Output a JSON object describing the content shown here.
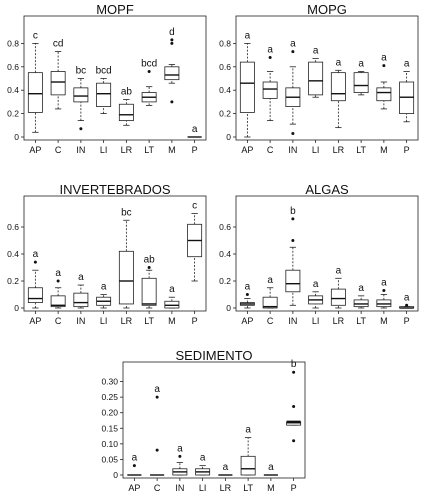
{
  "chart_data": [
    {
      "type": "boxplot",
      "title": "MOPF",
      "ylim": [
        0,
        1.0
      ],
      "yticks": [
        0,
        0.2,
        0.4,
        0.6,
        0.8
      ],
      "categories": [
        "AP",
        "C",
        "IN",
        "LI",
        "LR",
        "LT",
        "M",
        "P"
      ],
      "boxes": [
        {
          "min": 0.04,
          "q1": 0.21,
          "median": 0.37,
          "q3": 0.55,
          "max": 0.8,
          "outliers": [],
          "letter": "c"
        },
        {
          "min": 0.24,
          "q1": 0.36,
          "median": 0.47,
          "q3": 0.56,
          "max": 0.73,
          "outliers": [],
          "letter": "cd"
        },
        {
          "min": 0.14,
          "q1": 0.3,
          "median": 0.35,
          "q3": 0.42,
          "max": 0.5,
          "outliers": [
            0.07
          ],
          "letter": "bc"
        },
        {
          "min": 0.2,
          "q1": 0.26,
          "median": 0.37,
          "q3": 0.46,
          "max": 0.5,
          "outliers": [],
          "letter": "bcd"
        },
        {
          "min": 0.1,
          "q1": 0.14,
          "median": 0.19,
          "q3": 0.28,
          "max": 0.32,
          "outliers": [],
          "letter": "ab"
        },
        {
          "min": 0.27,
          "q1": 0.3,
          "median": 0.34,
          "q3": 0.38,
          "max": 0.43,
          "outliers": [
            0.56
          ],
          "letter": "bcd"
        },
        {
          "min": 0.46,
          "q1": 0.49,
          "median": 0.53,
          "q3": 0.6,
          "max": 0.62,
          "outliers": [
            0.3,
            0.8,
            0.83
          ],
          "letter": "d"
        },
        {
          "min": 0.0,
          "q1": 0.0,
          "median": 0.0,
          "q3": 0.0,
          "max": 0.0,
          "outliers": [],
          "letter": "a"
        }
      ]
    },
    {
      "type": "boxplot",
      "title": "MOPG",
      "ylim": [
        0,
        1.0
      ],
      "yticks": [
        0,
        0.2,
        0.4,
        0.6,
        0.8
      ],
      "categories": [
        "AP",
        "C",
        "IN",
        "LI",
        "LR",
        "LT",
        "M",
        "P"
      ],
      "boxes": [
        {
          "min": 0.0,
          "q1": 0.21,
          "median": 0.46,
          "q3": 0.64,
          "max": 0.8,
          "outliers": [],
          "letter": "a"
        },
        {
          "min": 0.14,
          "q1": 0.33,
          "median": 0.41,
          "q3": 0.47,
          "max": 0.56,
          "outliers": [
            0.68
          ],
          "letter": "a"
        },
        {
          "min": 0.11,
          "q1": 0.26,
          "median": 0.34,
          "q3": 0.42,
          "max": 0.6,
          "outliers": [
            0.03,
            0.73
          ],
          "letter": "a"
        },
        {
          "min": 0.34,
          "q1": 0.36,
          "median": 0.48,
          "q3": 0.64,
          "max": 0.67,
          "outliers": [],
          "letter": "a"
        },
        {
          "min": 0.08,
          "q1": 0.31,
          "median": 0.37,
          "q3": 0.55,
          "max": 0.57,
          "outliers": [],
          "letter": "a"
        },
        {
          "min": 0.36,
          "q1": 0.38,
          "median": 0.44,
          "q3": 0.55,
          "max": 0.56,
          "outliers": [],
          "letter": "a"
        },
        {
          "min": 0.24,
          "q1": 0.31,
          "median": 0.38,
          "q3": 0.42,
          "max": 0.47,
          "outliers": [
            0.61
          ],
          "letter": "a"
        },
        {
          "min": 0.13,
          "q1": 0.2,
          "median": 0.34,
          "q3": 0.47,
          "max": 0.56,
          "outliers": [],
          "letter": "a"
        }
      ]
    },
    {
      "type": "boxplot",
      "title": "INVERTEBRADOS",
      "ylim": [
        0,
        0.8
      ],
      "yticks": [
        0,
        0.2,
        0.4,
        0.6
      ],
      "categories": [
        "AP",
        "C",
        "IN",
        "LI",
        "LR",
        "LT",
        "M",
        "P"
      ],
      "boxes": [
        {
          "min": 0.0,
          "q1": 0.04,
          "median": 0.07,
          "q3": 0.15,
          "max": 0.28,
          "outliers": [
            0.34
          ],
          "letter": "a"
        },
        {
          "min": 0.0,
          "q1": 0.01,
          "median": 0.02,
          "q3": 0.09,
          "max": 0.15,
          "outliers": [
            0.2
          ],
          "letter": "a"
        },
        {
          "min": 0.0,
          "q1": 0.01,
          "median": 0.04,
          "q3": 0.11,
          "max": 0.17,
          "outliers": [],
          "letter": "a"
        },
        {
          "min": 0.0,
          "q1": 0.02,
          "median": 0.05,
          "q3": 0.08,
          "max": 0.1,
          "outliers": [],
          "letter": "a"
        },
        {
          "min": 0.0,
          "q1": 0.03,
          "median": 0.2,
          "q3": 0.42,
          "max": 0.65,
          "outliers": [],
          "letter": "bc"
        },
        {
          "min": 0.0,
          "q1": 0.02,
          "median": 0.03,
          "q3": 0.22,
          "max": 0.28,
          "outliers": [
            0.3
          ],
          "letter": "ab"
        },
        {
          "min": 0.0,
          "q1": 0.0,
          "median": 0.02,
          "q3": 0.05,
          "max": 0.08,
          "outliers": [],
          "letter": "a"
        },
        {
          "min": 0.2,
          "q1": 0.38,
          "median": 0.5,
          "q3": 0.62,
          "max": 0.7,
          "outliers": [],
          "letter": "c"
        }
      ]
    },
    {
      "type": "boxplot",
      "title": "ALGAS",
      "ylim": [
        0,
        0.8
      ],
      "yticks": [
        0,
        0.2,
        0.4,
        0.6
      ],
      "categories": [
        "AP",
        "C",
        "IN",
        "LI",
        "LR",
        "LT",
        "M",
        "P"
      ],
      "boxes": [
        {
          "min": 0.0,
          "q1": 0.02,
          "median": 0.03,
          "q3": 0.04,
          "max": 0.07,
          "outliers": [
            0.1
          ],
          "letter": "a"
        },
        {
          "min": 0.0,
          "q1": 0.0,
          "median": 0.01,
          "q3": 0.08,
          "max": 0.15,
          "outliers": [],
          "letter": "a"
        },
        {
          "min": 0.02,
          "q1": 0.12,
          "median": 0.18,
          "q3": 0.28,
          "max": 0.45,
          "outliers": [
            0.5,
            0.66
          ],
          "letter": "b"
        },
        {
          "min": 0.0,
          "q1": 0.03,
          "median": 0.06,
          "q3": 0.09,
          "max": 0.12,
          "outliers": [],
          "letter": "a"
        },
        {
          "min": 0.0,
          "q1": 0.02,
          "median": 0.07,
          "q3": 0.14,
          "max": 0.22,
          "outliers": [],
          "letter": "a"
        },
        {
          "min": 0.0,
          "q1": 0.01,
          "median": 0.03,
          "q3": 0.06,
          "max": 0.09,
          "outliers": [],
          "letter": "a"
        },
        {
          "min": 0.0,
          "q1": 0.01,
          "median": 0.03,
          "q3": 0.06,
          "max": 0.1,
          "outliers": [
            0.13
          ],
          "letter": "a"
        },
        {
          "min": 0.0,
          "q1": 0.0,
          "median": 0.0,
          "q3": 0.01,
          "max": 0.01,
          "outliers": [
            0.02
          ],
          "letter": "a"
        }
      ]
    },
    {
      "type": "boxplot",
      "title": "SEDIMENTO",
      "ylim": [
        0,
        0.35
      ],
      "yticks": [
        0,
        0.05,
        0.1,
        0.15,
        0.2,
        0.25,
        0.3
      ],
      "categories": [
        "AP",
        "C",
        "IN",
        "LI",
        "LR",
        "LT",
        "M",
        "P"
      ],
      "boxes": [
        {
          "min": 0.0,
          "q1": 0.0,
          "median": 0.0,
          "q3": 0.0,
          "max": 0.0,
          "outliers": [
            0.03
          ],
          "letter": "a"
        },
        {
          "min": 0.0,
          "q1": 0.0,
          "median": 0.0,
          "q3": 0.0,
          "max": 0.0,
          "outliers": [
            0.08,
            0.25
          ],
          "letter": "a"
        },
        {
          "min": 0.0,
          "q1": 0.0,
          "median": 0.01,
          "q3": 0.02,
          "max": 0.04,
          "outliers": [
            0.06
          ],
          "letter": "a"
        },
        {
          "min": 0.0,
          "q1": 0.0,
          "median": 0.01,
          "q3": 0.02,
          "max": 0.03,
          "outliers": [],
          "letter": "a"
        },
        {
          "min": 0.0,
          "q1": 0.0,
          "median": 0.0,
          "q3": 0.0,
          "max": 0.0,
          "outliers": [],
          "letter": "a"
        },
        {
          "min": 0.0,
          "q1": 0.0,
          "median": 0.02,
          "q3": 0.06,
          "max": 0.12,
          "outliers": [],
          "letter": "a"
        },
        {
          "min": 0.0,
          "q1": 0.0,
          "median": 0.0,
          "q3": 0.0,
          "max": 0.0,
          "outliers": [],
          "letter": "a"
        },
        {
          "min": 0.16,
          "q1": 0.16,
          "median": 0.17,
          "q3": 0.17,
          "max": 0.17,
          "outliers": [
            0.11,
            0.22,
            0.33
          ],
          "letter": "b"
        }
      ]
    }
  ]
}
